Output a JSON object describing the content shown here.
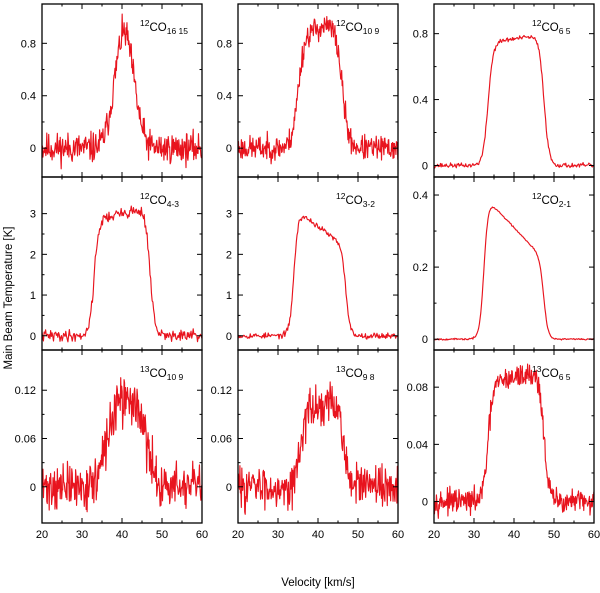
{
  "chart_data": {
    "type": "line",
    "xlabel": "Velocity [km/s]",
    "ylabel": "Main Beam Temperature [K]",
    "xlim": [
      20,
      60
    ],
    "xticks": [
      20,
      30,
      40,
      50,
      60
    ],
    "line_color": "#e8141e",
    "panels": [
      {
        "id": "12co-16-15",
        "isotope": "12",
        "molecule": "CO",
        "transition": "16 15",
        "ylim": [
          -0.22,
          1.1
        ],
        "yticks": [
          0,
          0.4,
          0.8
        ],
        "yticklabels": [
          "0",
          "0.4",
          "0.8"
        ],
        "profile": {
          "center": 40.5,
          "half_width": 4.0,
          "edge": 3.2,
          "peak": 0.88,
          "tilt": 0.05,
          "noise": 0.1,
          "shape": "gauss",
          "seed": 11
        }
      },
      {
        "id": "12co-10-9",
        "isotope": "12",
        "molecule": "CO",
        "transition": "10 9",
        "ylim": [
          -0.22,
          1.1
        ],
        "yticks": [
          0,
          0.4,
          0.8
        ],
        "yticklabels": [
          "0",
          "0.4",
          "0.8"
        ],
        "profile": {
          "center": 40.5,
          "half_width": 5.5,
          "edge": 1.8,
          "peak": 0.92,
          "tilt": 0.05,
          "noise": 0.08,
          "shape": "flat",
          "seed": 23
        }
      },
      {
        "id": "12co-6-5",
        "isotope": "12",
        "molecule": "CO",
        "transition": "6 5",
        "ylim": [
          -0.07,
          0.98
        ],
        "yticks": [
          0,
          0.4,
          0.8
        ],
        "yticklabels": [
          "0",
          "0.4",
          "0.8"
        ],
        "profile": {
          "center": 40.5,
          "half_width": 7.0,
          "edge": 1.4,
          "peak": 0.77,
          "tilt": 0.03,
          "noise": 0.012,
          "shape": "flat",
          "seed": 37
        }
      },
      {
        "id": "12co-4-3",
        "isotope": "12",
        "molecule": "CO",
        "transition": "4-3",
        "ylim": [
          -0.35,
          3.9
        ],
        "yticks": [
          0,
          1,
          2,
          3
        ],
        "yticklabels": [
          "0",
          "1",
          "2",
          "3"
        ],
        "profile": {
          "center": 40.0,
          "half_width": 7.0,
          "edge": 1.3,
          "peak": 3.0,
          "tilt": 0.05,
          "noise": 0.12,
          "shape": "flat",
          "seed": 41
        }
      },
      {
        "id": "12co-3-2",
        "isotope": "12",
        "molecule": "CO",
        "transition": "3-2",
        "ylim": [
          -0.35,
          3.9
        ],
        "yticks": [
          0,
          1,
          2,
          3
        ],
        "yticklabels": [
          "0",
          "1",
          "2",
          "3"
        ],
        "profile": {
          "center": 40.5,
          "half_width": 6.5,
          "edge": 1.2,
          "peak": 2.65,
          "tilt": -0.18,
          "noise": 0.06,
          "shape": "flat",
          "seed": 53
        }
      },
      {
        "id": "12co-2-1",
        "isotope": "12",
        "molecule": "CO",
        "transition": "2-1",
        "ylim": [
          -0.03,
          0.45
        ],
        "yticks": [
          0,
          0.2,
          0.4
        ],
        "yticklabels": [
          "0",
          "0.2",
          "0.4"
        ],
        "profile": {
          "center": 40.0,
          "half_width": 7.5,
          "edge": 1.2,
          "peak": 0.31,
          "tilt": -0.28,
          "noise": 0.002,
          "shape": "flat",
          "seed": 67
        }
      },
      {
        "id": "13co-10-9",
        "isotope": "13",
        "molecule": "CO",
        "transition": "10 9",
        "ylim": [
          -0.045,
          0.17
        ],
        "yticks": [
          0,
          0.06,
          0.12
        ],
        "yticklabels": [
          "0",
          "0.06",
          "0.12"
        ],
        "profile": {
          "center": 41.0,
          "half_width": 5.0,
          "edge": 2.5,
          "peak": 0.11,
          "tilt": 0.05,
          "noise": 0.025,
          "shape": "flat",
          "seed": 71
        }
      },
      {
        "id": "13co-9-8",
        "isotope": "13",
        "molecule": "CO",
        "transition": "9 8",
        "ylim": [
          -0.045,
          0.17
        ],
        "yticks": [
          0,
          0.06,
          0.12
        ],
        "yticklabels": [
          "0",
          "0.06",
          "0.12"
        ],
        "profile": {
          "center": 41.0,
          "half_width": 5.5,
          "edge": 1.5,
          "peak": 0.1,
          "tilt": 0.05,
          "noise": 0.022,
          "shape": "flat",
          "seed": 83
        }
      },
      {
        "id": "13co-6-5",
        "isotope": "13",
        "molecule": "CO",
        "transition": "6 5",
        "ylim": [
          -0.015,
          0.106
        ],
        "yticks": [
          0,
          0.04,
          0.08
        ],
        "yticklabels": [
          "0",
          "0.04",
          "0.08"
        ],
        "profile": {
          "center": 40.5,
          "half_width": 7.0,
          "edge": 1.4,
          "peak": 0.087,
          "tilt": 0.05,
          "noise": 0.007,
          "shape": "flat",
          "seed": 97
        }
      }
    ]
  }
}
